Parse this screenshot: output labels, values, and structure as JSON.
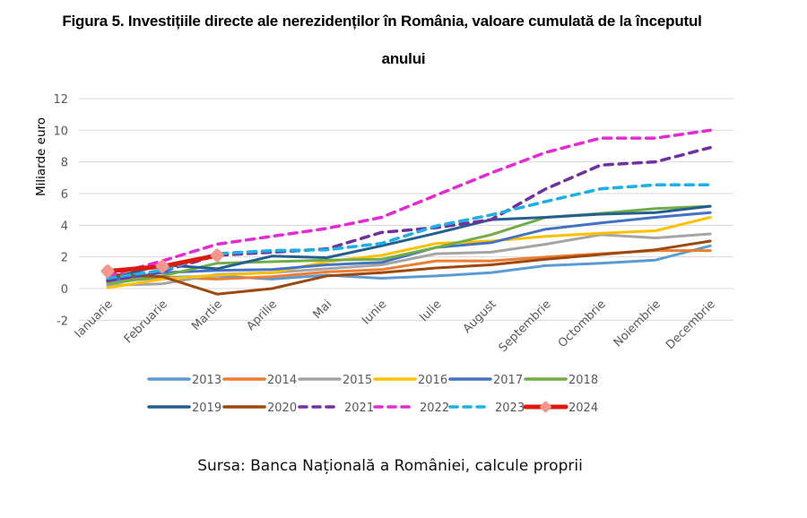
{
  "title_line1": "Figura 5. Investițiile directe ale nerezidenților în România, valoare cumulată de la începutul",
  "title_line2": "anului",
  "source": "Sursa: Banca Națională a României, calcule proprii",
  "chart_data": {
    "type": "line",
    "title": "Figura 5. Investițiile directe ale nerezidenților în România, valoare cumulată de la începutul anului",
    "xlabel": "",
    "ylabel": "Miliarde euro",
    "ylim": [
      -2,
      12
    ],
    "yticks": [
      -2,
      0,
      2,
      4,
      6,
      8,
      10,
      12
    ],
    "grid": true,
    "legend_position": "bottom",
    "categories": [
      "Ianuarie",
      "Februarie",
      "Martie",
      "Aprilie",
      "Mai",
      "Iunie",
      "Iulie",
      "August",
      "Septembrie",
      "Octombrie",
      "Noiembrie",
      "Decembrie"
    ],
    "series": [
      {
        "name": "2013",
        "color": "#5B9BD5",
        "style": "solid",
        "values": [
          0.4,
          0.7,
          0.8,
          0.6,
          0.85,
          0.65,
          0.8,
          1.0,
          1.45,
          1.6,
          1.8,
          2.7
        ]
      },
      {
        "name": "2014",
        "color": "#ED7D31",
        "style": "solid",
        "values": [
          0.6,
          0.7,
          0.6,
          0.75,
          1.05,
          1.2,
          1.75,
          1.75,
          2.0,
          2.2,
          2.4,
          2.4
        ]
      },
      {
        "name": "2015",
        "color": "#A5A5A5",
        "style": "solid",
        "values": [
          0.2,
          0.3,
          0.9,
          1.0,
          1.25,
          1.5,
          2.2,
          2.3,
          2.8,
          3.4,
          3.2,
          3.45
        ]
      },
      {
        "name": "2016",
        "color": "#FFC000",
        "style": "solid",
        "values": [
          0.05,
          0.6,
          0.85,
          1.0,
          1.7,
          2.1,
          2.85,
          3.0,
          3.3,
          3.5,
          3.65,
          4.5
        ]
      },
      {
        "name": "2017",
        "color": "#4472C4",
        "style": "solid",
        "values": [
          0.5,
          1.0,
          1.15,
          1.2,
          1.5,
          1.65,
          2.6,
          2.9,
          3.75,
          4.15,
          4.5,
          4.8
        ]
      },
      {
        "name": "2018",
        "color": "#70AD47",
        "style": "solid",
        "values": [
          0.3,
          0.8,
          1.6,
          1.7,
          1.8,
          1.85,
          2.6,
          3.4,
          4.5,
          4.75,
          5.05,
          5.2
        ]
      },
      {
        "name": "2019",
        "color": "#255E91",
        "style": "solid",
        "values": [
          0.6,
          1.5,
          1.25,
          2.05,
          1.95,
          2.7,
          3.5,
          4.35,
          4.5,
          4.7,
          4.8,
          5.2
        ]
      },
      {
        "name": "2020",
        "color": "#9E480E",
        "style": "solid",
        "values": [
          0.9,
          0.75,
          -0.35,
          0.0,
          0.8,
          1.0,
          1.3,
          1.5,
          1.85,
          2.15,
          2.45,
          3.0
        ]
      },
      {
        "name": "2021",
        "color": "#7030A0",
        "style": "dashed",
        "values": [
          0.5,
          1.1,
          2.1,
          2.3,
          2.5,
          3.55,
          3.85,
          4.35,
          6.3,
          7.8,
          8.0,
          8.9
        ]
      },
      {
        "name": "2022",
        "color": "#E62AD3",
        "style": "dashed",
        "values": [
          0.8,
          1.75,
          2.8,
          3.3,
          3.8,
          4.5,
          5.9,
          7.3,
          8.6,
          9.5,
          9.5,
          10.0
        ]
      },
      {
        "name": "2023",
        "color": "#1CB0E3",
        "style": "dashed",
        "values": [
          0.65,
          1.15,
          2.2,
          2.4,
          2.45,
          2.85,
          3.95,
          4.65,
          5.5,
          6.3,
          6.55,
          6.55
        ]
      },
      {
        "name": "2024",
        "color": "#E0190F",
        "style": "solid-marker",
        "marker_color": "#F4978E",
        "values": [
          1.1,
          1.4,
          2.1
        ]
      }
    ]
  }
}
